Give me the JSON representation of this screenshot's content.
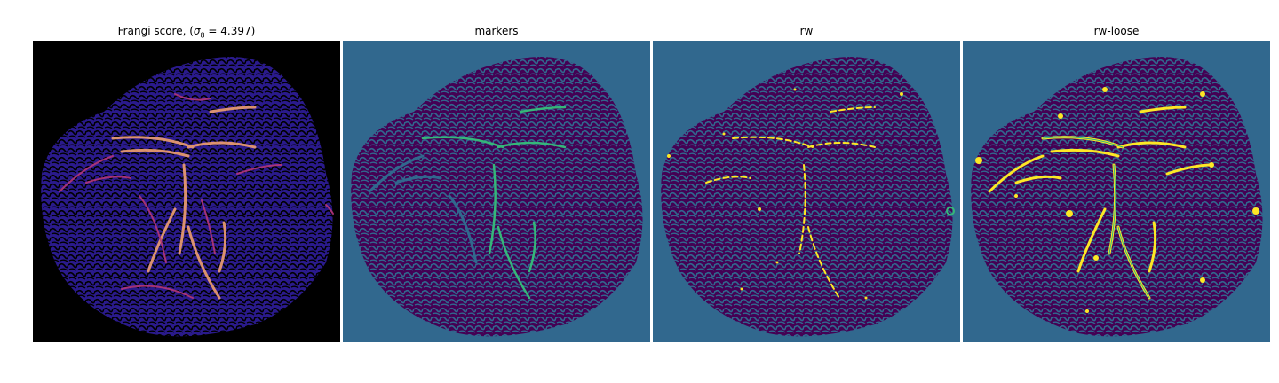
{
  "panels": [
    {
      "title_prefix": "Frangi score, (",
      "title_sigma": "σ",
      "title_sub": "8",
      "title_suffix": " = 4.397)",
      "colormap": "magma"
    },
    {
      "title": "markers",
      "colormap": "viridis"
    },
    {
      "title": "rw",
      "colormap": "viridis"
    },
    {
      "title": "rw-loose",
      "colormap": "viridis"
    }
  ],
  "colors": {
    "background_teal": "#31688e",
    "dark_purple": "#440154",
    "vessel_green": "#35b779",
    "yellow": "#fde725",
    "frangi_bg": "#000000",
    "frangi_tissue": "#2a1a8c",
    "frangi_vessel": "#f7c08a",
    "frangi_vessel_mid": "#b5367a"
  }
}
